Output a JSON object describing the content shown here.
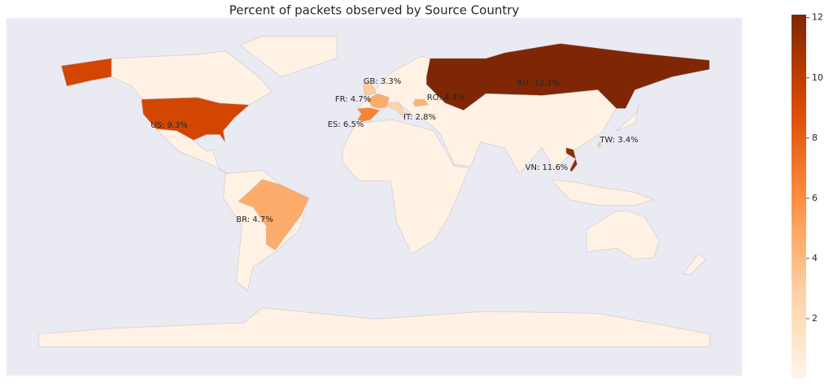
{
  "chart_data": {
    "type": "choropleth",
    "title": "Percent of packets observed by Source Country",
    "values": [
      12.1,
      11.6,
      9.3,
      6.5,
      4.7,
      4.7,
      4.4,
      3.4,
      3.3,
      2.8
    ],
    "value_labels": [
      "RU: 12.1%",
      "VN: 11.6%",
      "US: 9.3%",
      "ES: 6.5%",
      "FR: 4.7%",
      "BR: 4.7%",
      "RO: 4.4%",
      "TW: 3.4%",
      "GB: 3.3%",
      "IT: 2.8%"
    ],
    "colorscale": [
      "#fff5eb",
      "#fdd0a2",
      "#fd8d3c",
      "#d94801",
      "#7f2704"
    ],
    "ylim": [
      0,
      12.1
    ],
    "yticks": [
      2,
      4,
      6,
      8,
      10,
      12
    ]
  }
}
